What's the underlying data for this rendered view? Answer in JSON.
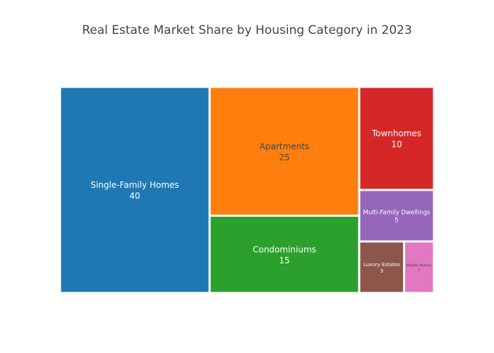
{
  "chart_data": {
    "type": "treemap",
    "title": "Real Estate Market Share by Housing Category in 2023",
    "categories": [
      "Single-Family Homes",
      "Apartments",
      "Condominiums",
      "Townhomes",
      "Multi-Family Dwellings",
      "Luxury Estates",
      "Mobile Homes"
    ],
    "values": [
      40,
      25,
      15,
      10,
      5,
      3,
      2
    ],
    "colors": [
      "#1f77b4",
      "#ff7f0e",
      "#2ca02c",
      "#d62728",
      "#9467bd",
      "#8c564b",
      "#e377c2"
    ],
    "label_colors": [
      "#ffffff",
      "#444444",
      "#ffffff",
      "#ffffff",
      "#ffffff",
      "#ffffff",
      "#444444"
    ]
  }
}
